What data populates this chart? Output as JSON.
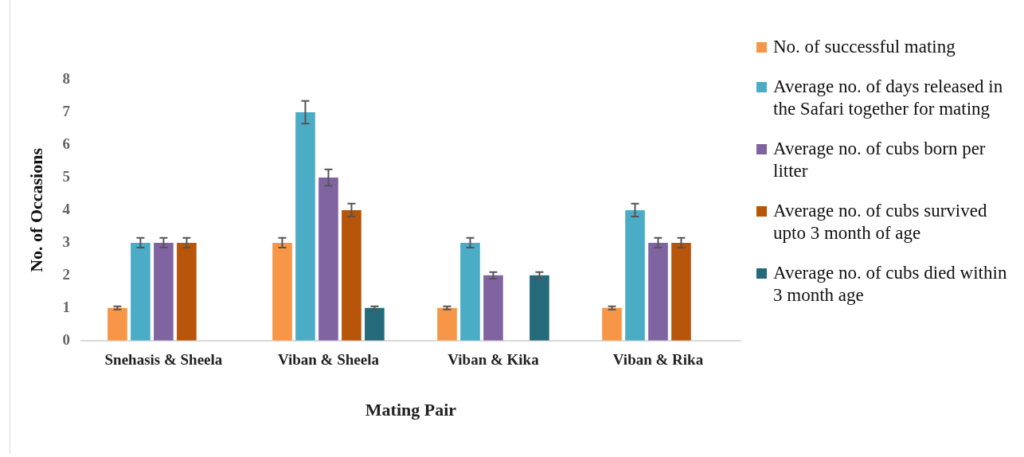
{
  "chart_data": {
    "type": "bar",
    "xlabel": "Mating Pair",
    "ylabel": "No. of Occasions",
    "categories": [
      "Snehasis & Sheela",
      "Viban & Sheela",
      "Viban & Kika",
      "Viban & Rika"
    ],
    "series": [
      {
        "name": "No. of successful mating",
        "color": "#f79646",
        "values": [
          1,
          3,
          1,
          1
        ],
        "errors": [
          0.05,
          0.15,
          0.05,
          0.05
        ]
      },
      {
        "name": "Average no. of days released in the Safari together for mating",
        "color": "#4bacc6",
        "values": [
          3,
          7,
          3,
          4
        ],
        "errors": [
          0.15,
          0.35,
          0.15,
          0.2
        ]
      },
      {
        "name": "Average no. of cubs born per litter",
        "color": "#8064a2",
        "values": [
          3,
          5,
          2,
          3
        ],
        "errors": [
          0.15,
          0.25,
          0.1,
          0.15
        ]
      },
      {
        "name": "Average no. of cubs survived upto 3 month of age",
        "color": "#b7550a",
        "values": [
          3,
          4,
          null,
          3
        ],
        "errors": [
          0.15,
          0.2,
          null,
          0.15
        ]
      },
      {
        "name": "Average no. of cubs died within 3 month age",
        "color": "#256a7a",
        "values": [
          null,
          1,
          2,
          null
        ],
        "errors": [
          null,
          0.05,
          0.1,
          null
        ]
      }
    ],
    "ylim": [
      0,
      8
    ],
    "yticks": [
      0,
      1,
      2,
      3,
      4,
      5,
      6,
      7,
      8
    ],
    "grid": false,
    "legend": "right"
  }
}
